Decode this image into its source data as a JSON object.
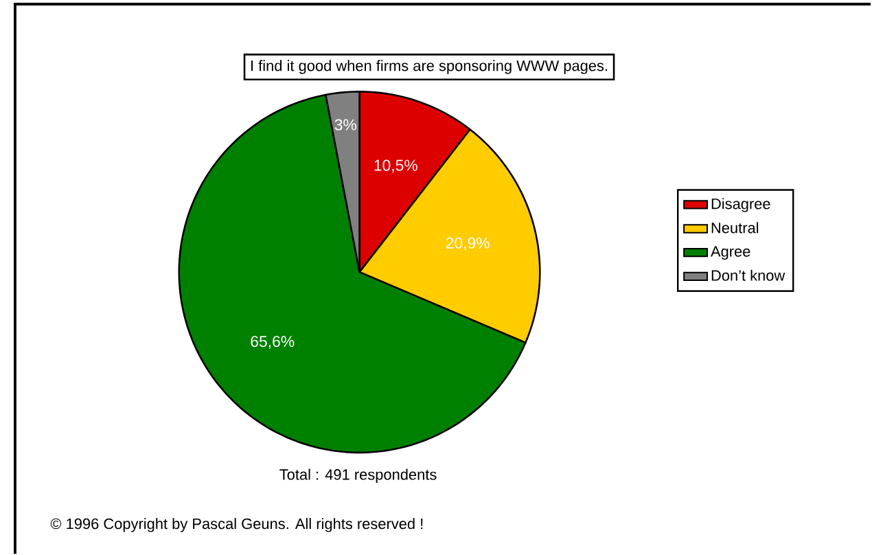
{
  "chart_data": {
    "type": "pie",
    "title": "I find it good when firms are sponsoring WWW pages.",
    "categories": [
      "Disagree",
      "Neutral",
      "Agree",
      "Don’t know"
    ],
    "values": [
      10.5,
      20.9,
      65.6,
      3
    ],
    "value_labels": [
      "10,5%",
      "20,9%",
      "65,6%",
      "3%"
    ],
    "colors": [
      "#dd0000",
      "#ffcc00",
      "#008000",
      "#808080"
    ],
    "legend": "right",
    "annotations": [
      "Total :  491 respondents",
      "© 1996   Copyright by Pascal Geuns.  All rights reserved !"
    ]
  }
}
